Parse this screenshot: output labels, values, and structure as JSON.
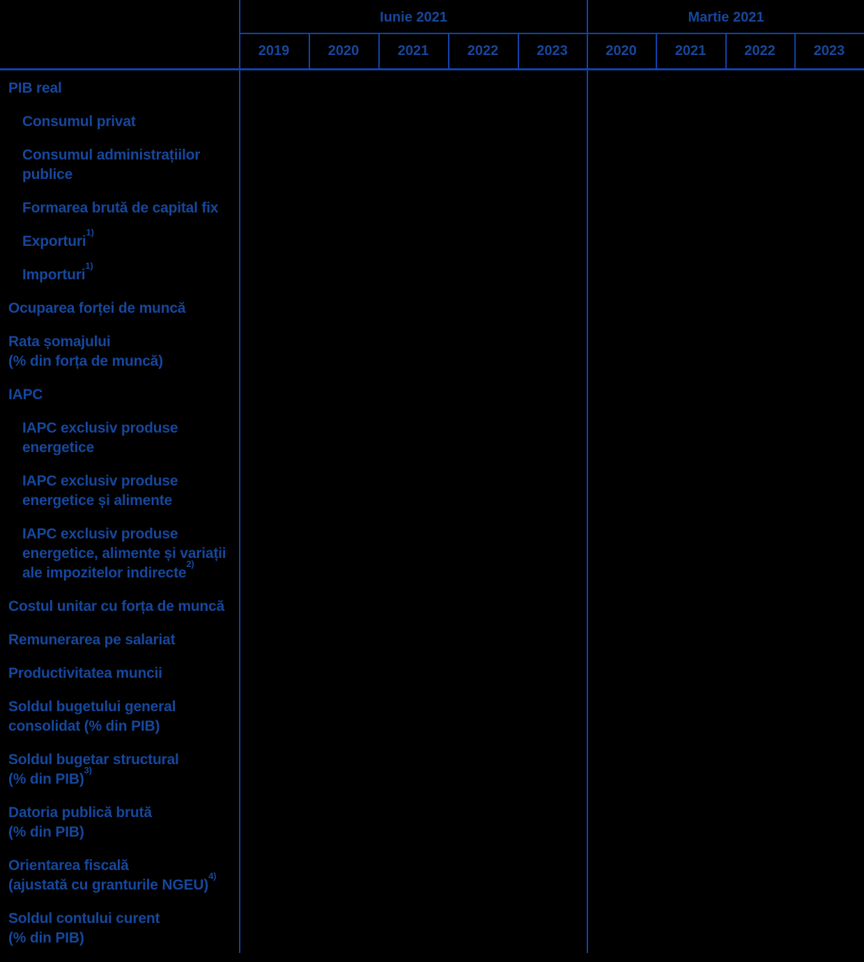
{
  "header": {
    "groups": [
      {
        "label": "Iunie 2021",
        "years": [
          "2019",
          "2020",
          "2021",
          "2022",
          "2023"
        ]
      },
      {
        "label": "Martie 2021",
        "years": [
          "2020",
          "2021",
          "2022",
          "2023"
        ]
      }
    ]
  },
  "rows": [
    {
      "lines": [
        "PIB real"
      ],
      "indent": false
    },
    {
      "lines": [
        "Consumul privat"
      ],
      "indent": true
    },
    {
      "lines": [
        "Consumul administrațiilor",
        "publice"
      ],
      "indent": true
    },
    {
      "lines": [
        "Formarea brută de capital fix"
      ],
      "indent": true
    },
    {
      "lines": [
        "Exporturi"
      ],
      "sup": "1)",
      "indent": true
    },
    {
      "lines": [
        "Importuri"
      ],
      "sup": "1)",
      "indent": true
    },
    {
      "lines": [
        "Ocuparea forței de muncă"
      ],
      "indent": false
    },
    {
      "lines": [
        "Rata șomajului",
        "(% din forța de muncă)"
      ],
      "indent": false
    },
    {
      "lines": [
        "IAPC"
      ],
      "indent": false
    },
    {
      "lines": [
        "IAPC exclusiv produse",
        "energetice"
      ],
      "indent": true
    },
    {
      "lines": [
        "IAPC exclusiv produse",
        "energetice și alimente"
      ],
      "indent": true
    },
    {
      "lines": [
        "IAPC exclusiv produse",
        "energetice, alimente și variații",
        "ale impozitelor indirecte"
      ],
      "sup": "2)",
      "indent": true
    },
    {
      "lines": [
        "Costul unitar cu forța de muncă"
      ],
      "indent": false
    },
    {
      "lines": [
        "Remunerarea pe salariat"
      ],
      "indent": false
    },
    {
      "lines": [
        "Productivitatea muncii"
      ],
      "indent": false
    },
    {
      "lines": [
        "Soldul bugetului general",
        "consolidat (% din PIB)"
      ],
      "indent": false
    },
    {
      "lines": [
        "Soldul bugetar structural",
        "(% din PIB)"
      ],
      "sup": "3)",
      "indent": false
    },
    {
      "lines": [
        "Datoria publică brută",
        "(% din PIB)"
      ],
      "indent": false
    },
    {
      "lines": [
        "Orientarea fiscală",
        "(ajustată cu granturile NGEU)"
      ],
      "sup": "4)",
      "indent": false
    },
    {
      "lines": [
        "Soldul contului curent",
        "(% din PIB)"
      ],
      "indent": false
    }
  ],
  "data_cells": {
    "note": "all data cells are empty/black in the screenshot"
  },
  "colors": {
    "background": "#000000",
    "text": "#16479D",
    "line": "#1143AE"
  }
}
